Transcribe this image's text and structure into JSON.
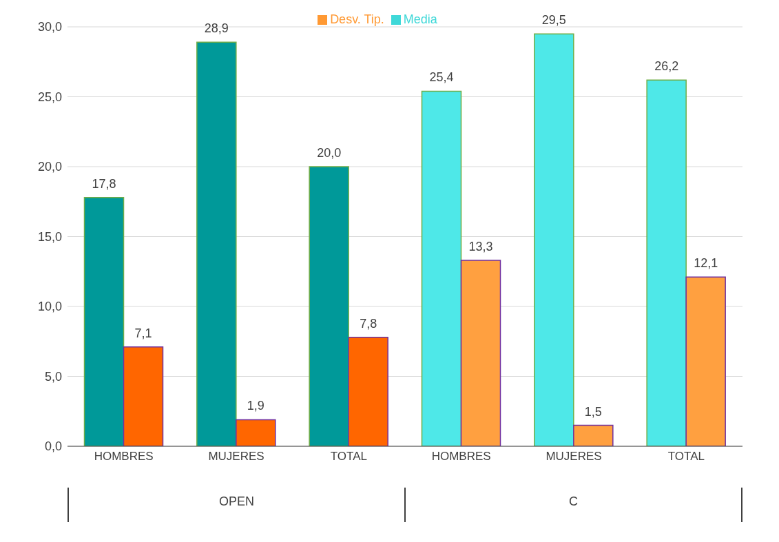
{
  "chart_data": {
    "type": "bar",
    "categories": [
      "HOMBRES",
      "MUJERES",
      "TOTAL",
      "HOMBRES",
      "MUJERES",
      "TOTAL"
    ],
    "annotations": [
      "OPEN",
      "C"
    ],
    "series": [
      {
        "name": "Media",
        "color": "#3fd8d8",
        "colors": [
          "#009999",
          "#009999",
          "#009999",
          "#4ee8e8",
          "#4ee8e8",
          "#4ee8e8"
        ],
        "values": [
          17.8,
          28.9,
          20.0,
          25.4,
          29.5,
          26.2
        ],
        "value_labels": [
          "17,8",
          "28,9",
          "20,0",
          "25,4",
          "29,5",
          "26,2"
        ]
      },
      {
        "name": "Desv. Tip.",
        "color": "#ff9933",
        "colors": [
          "#ff6600",
          "#ff6600",
          "#ff6600",
          "#ffa040",
          "#ffa040",
          "#ffa040"
        ],
        "values": [
          7.1,
          1.9,
          7.8,
          13.3,
          1.5,
          12.1
        ],
        "value_labels": [
          "7,1",
          "1,9",
          "7,8",
          "13,3",
          "1,5",
          "12,1"
        ]
      }
    ],
    "ylim": [
      0,
      30
    ],
    "yticks": [
      {
        "value": 0,
        "label": "0,0"
      },
      {
        "value": 5,
        "label": "5,0"
      },
      {
        "value": 10,
        "label": "10,0"
      },
      {
        "value": 15,
        "label": "15,0"
      },
      {
        "value": 20,
        "label": "20,0"
      },
      {
        "value": 25,
        "label": "25,0"
      },
      {
        "value": 30,
        "label": "30,0"
      }
    ],
    "grid": "y",
    "legend": "top"
  }
}
